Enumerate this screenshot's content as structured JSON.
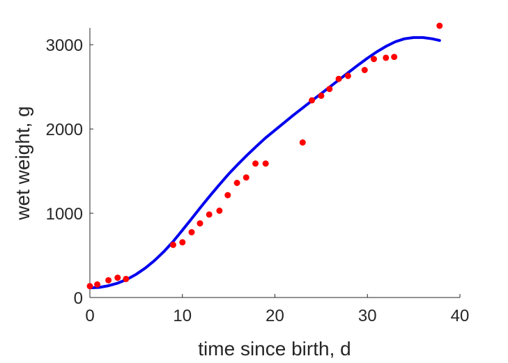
{
  "chart_data": {
    "type": "scatter",
    "title": "",
    "xlabel": "time since birth, d",
    "ylabel": "wet weight, g",
    "xlim": [
      0,
      40
    ],
    "ylim": [
      0,
      3200
    ],
    "xticks": [
      0,
      10,
      20,
      30,
      40
    ],
    "yticks": [
      0,
      1000,
      2000,
      3000
    ],
    "xtick_labels": [
      "0",
      "10",
      "20",
      "30",
      "40"
    ],
    "ytick_labels": [
      "0",
      "1000",
      "2000",
      "3000"
    ],
    "grid": false,
    "legend": "none",
    "series": [
      {
        "kind": "points",
        "color": "#ff0000",
        "x": [
          0,
          0.8,
          2,
          3,
          3.9,
          9,
          10,
          11,
          11.9,
          12.9,
          14,
          14.9,
          15.9,
          16.9,
          17.9,
          19,
          23,
          24,
          25,
          25.9,
          26.9,
          27.9,
          29.7,
          30.7,
          32,
          32.9,
          37.8
        ],
        "y": [
          135,
          155,
          205,
          235,
          220,
          625,
          655,
          775,
          880,
          985,
          1030,
          1215,
          1360,
          1425,
          1590,
          1590,
          1840,
          2340,
          2395,
          2475,
          2595,
          2630,
          2700,
          2830,
          2845,
          2855,
          3225
        ]
      },
      {
        "kind": "line",
        "color": "#0000ee",
        "x": [
          0,
          1,
          2,
          3,
          4,
          5,
          6,
          7,
          8,
          9,
          10,
          11,
          12,
          13,
          14,
          15,
          16,
          17,
          18,
          19,
          20,
          21,
          22,
          23,
          24,
          25,
          26,
          27,
          28,
          29,
          30,
          31,
          32,
          33,
          34,
          35,
          36,
          37,
          37.8
        ],
        "y": [
          115,
          120,
          140,
          170,
          215,
          275,
          350,
          440,
          545,
          665,
          800,
          935,
          1075,
          1210,
          1340,
          1465,
          1580,
          1690,
          1795,
          1895,
          1985,
          2075,
          2165,
          2250,
          2335,
          2420,
          2505,
          2590,
          2675,
          2760,
          2840,
          2915,
          2980,
          3035,
          3070,
          3085,
          3085,
          3070,
          3050
        ]
      }
    ]
  }
}
